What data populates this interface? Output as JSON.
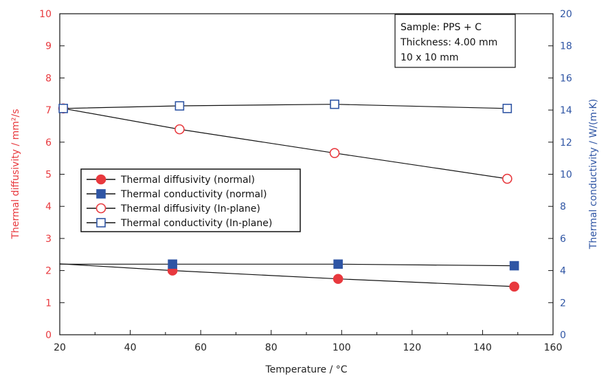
{
  "colors": {
    "left_axis": "#e8393e",
    "right_axis": "#2f55a4",
    "series_line": "#111111"
  },
  "chart_data": {
    "type": "line",
    "xlabel": "Temperature / °C",
    "ylabel_left": "Thermal diffusivity / mm²/s",
    "ylabel_right": "Thermal conductivity / W/(m·K)",
    "xlim": [
      20,
      160
    ],
    "ylim_left": [
      0,
      10
    ],
    "ylim_right": [
      0,
      20
    ],
    "x_ticks": [
      "20",
      "40",
      "60",
      "80",
      "100",
      "120",
      "140",
      "160"
    ],
    "y_ticks_left": [
      "0",
      "1",
      "2",
      "3",
      "4",
      "5",
      "6",
      "7",
      "8",
      "9",
      "10"
    ],
    "y_ticks_right": [
      "0",
      "2",
      "4",
      "6",
      "8",
      "10",
      "12",
      "14",
      "16",
      "18",
      "20"
    ],
    "grid": false,
    "legend_position": "middle-left",
    "annotation": [
      "Sample: PPS + C",
      "Thickness: 4.00 mm",
      "10 x 10 mm"
    ],
    "series": [
      {
        "name": "Thermal diffusivity (normal)",
        "axis": "left",
        "marker": "circle-filled",
        "color": "#e8393e",
        "x": [
          20,
          52,
          99,
          149
        ],
        "y": [
          2.21,
          2.0,
          1.74,
          1.5
        ]
      },
      {
        "name": "Thermal conductivity (normal)",
        "axis": "right",
        "marker": "square-filled",
        "color": "#2f55a4",
        "x": [
          20,
          52,
          99,
          149
        ],
        "y": [
          4.4,
          4.4,
          4.4,
          4.3
        ]
      },
      {
        "name": "Thermal diffusivity (In-plane)",
        "axis": "left",
        "marker": "circle-open",
        "color": "#e8393e",
        "x": [
          21,
          54,
          98,
          147
        ],
        "y": [
          7.05,
          6.4,
          5.66,
          4.86
        ]
      },
      {
        "name": "Thermal conductivity (In-plane)",
        "axis": "right",
        "marker": "square-open",
        "color": "#2f55a4",
        "x": [
          21,
          54,
          98,
          147
        ],
        "y": [
          14.1,
          14.26,
          14.36,
          14.1
        ]
      }
    ]
  }
}
